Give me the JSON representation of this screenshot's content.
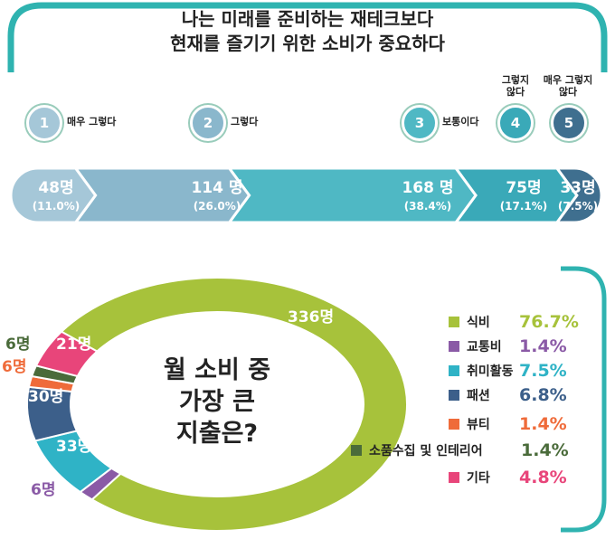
{
  "chart_data": [
    {
      "type": "bar",
      "title": "나는 미래를 준비하는 재테크보다 현재를 즐기기 위한 소비가 중요하다",
      "title_lines": [
        "나는 미래를 준비하는 재테크보다",
        "현재를 즐기기 위한 소비가 중요하다"
      ],
      "categories": [
        {
          "num": "1",
          "label": "매우 그렇다"
        },
        {
          "num": "2",
          "label": "그렇다"
        },
        {
          "num": "3",
          "label": "보통이다"
        },
        {
          "num": "4",
          "label": "그렇지 않다"
        },
        {
          "num": "5",
          "label": "매우 그렇지 않다"
        }
      ],
      "values": [
        48,
        114,
        168,
        75,
        33
      ],
      "value_labels": [
        "48명",
        "114 명",
        "168 명",
        "75명",
        "33명"
      ],
      "percent_labels": [
        "(11.0%)",
        "(26.0%)",
        "(38.4%)",
        "(17.1%)",
        "(7.5%)"
      ],
      "colors": [
        "#a5c7d8",
        "#8ab7cc",
        "#4fb8c4",
        "#3aa9b8",
        "#3f6f8f"
      ]
    },
    {
      "type": "pie",
      "title": "월 소비 중 가장 큰 지출은?",
      "title_lines": [
        "월 소비 중",
        "가장 큰",
        "지출은?"
      ],
      "series": [
        {
          "name": "식비",
          "value": 336,
          "label": "336명",
          "percent": "76.7%",
          "color": "#a7c23b"
        },
        {
          "name": "교통비",
          "value": 6,
          "label": "6명",
          "percent": "1.4%",
          "color": "#8a5aa6"
        },
        {
          "name": "취미활동",
          "value": 33,
          "label": "33명",
          "percent": "7.5%",
          "color": "#2fb3c6"
        },
        {
          "name": "패션",
          "value": 30,
          "label": "30명",
          "percent": "6.8%",
          "color": "#3c5f8a"
        },
        {
          "name": "뷰티",
          "value": 6,
          "label": "6명",
          "percent": "1.4%",
          "color": "#ef6b3a"
        },
        {
          "name": "소품수집 및 인테리어",
          "value": 6,
          "label": "6명",
          "percent": "1.4%",
          "color": "#4a6b3a"
        },
        {
          "name": "기타",
          "value": 21,
          "label": "21명",
          "percent": "4.8%",
          "color": "#e8457a"
        }
      ]
    }
  ],
  "colors": {
    "frame": "#2fb3b0",
    "text": "#222222"
  }
}
